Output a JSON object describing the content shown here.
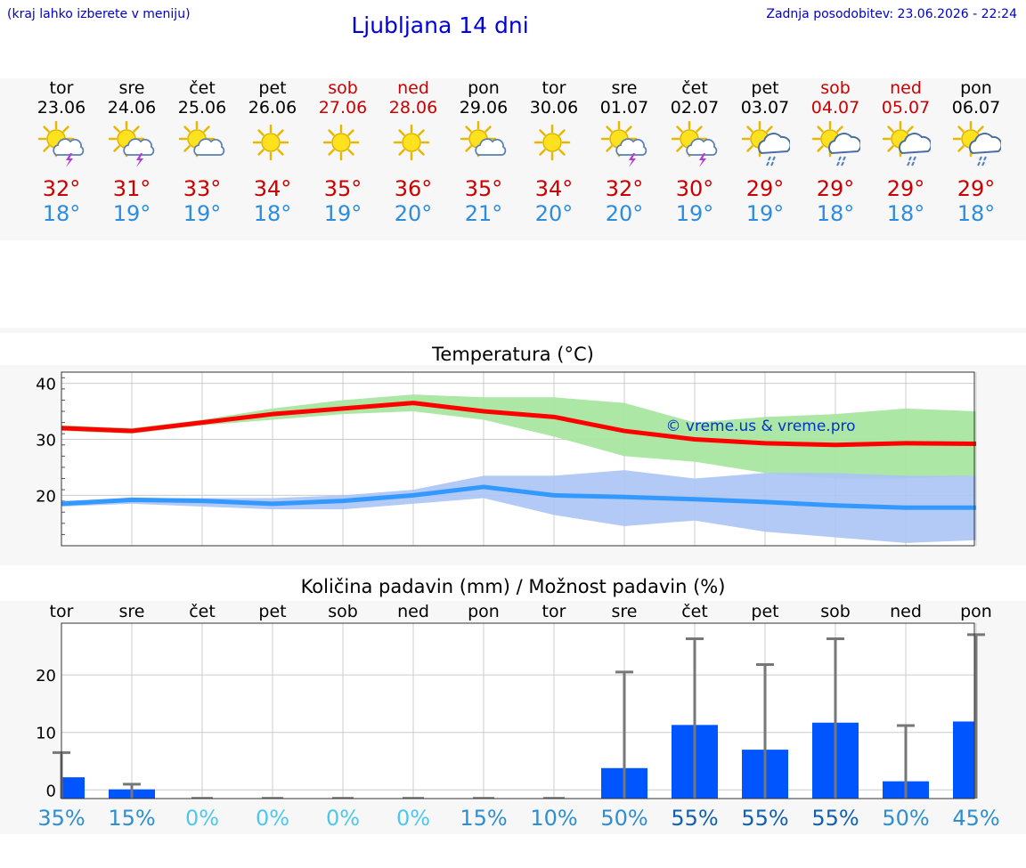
{
  "header": {
    "hint": "(kraj lahko izberete v meniju)",
    "title": "Ljubljana 14 dni",
    "updated": "Zadnja posodobitev: 23.06.2026 - 22:24"
  },
  "days": [
    {
      "name": "tor",
      "date": "23.06",
      "icon": "sun-thunder-icon",
      "max": "32°",
      "min": "18°",
      "weekend": false
    },
    {
      "name": "sre",
      "date": "24.06",
      "icon": "sun-thunder-icon",
      "max": "31°",
      "min": "19°",
      "weekend": false
    },
    {
      "name": "čet",
      "date": "25.06",
      "icon": "sun-cloud-icon",
      "max": "33°",
      "min": "19°",
      "weekend": false
    },
    {
      "name": "pet",
      "date": "26.06",
      "icon": "sun-icon",
      "max": "34°",
      "min": "18°",
      "weekend": false
    },
    {
      "name": "sob",
      "date": "27.06",
      "icon": "sun-icon",
      "max": "35°",
      "min": "19°",
      "weekend": true
    },
    {
      "name": "ned",
      "date": "28.06",
      "icon": "sun-icon",
      "max": "36°",
      "min": "20°",
      "weekend": true
    },
    {
      "name": "pon",
      "date": "29.06",
      "icon": "sun-cloud-icon",
      "max": "35°",
      "min": "21°",
      "weekend": false
    },
    {
      "name": "tor",
      "date": "30.06",
      "icon": "sun-icon",
      "max": "34°",
      "min": "20°",
      "weekend": false
    },
    {
      "name": "sre",
      "date": "01.07",
      "icon": "sun-thunder-icon",
      "max": "32°",
      "min": "20°",
      "weekend": false
    },
    {
      "name": "čet",
      "date": "02.07",
      "icon": "sun-thunder-icon",
      "max": "30°",
      "min": "19°",
      "weekend": false
    },
    {
      "name": "pet",
      "date": "03.07",
      "icon": "sun-rain-icon",
      "max": "29°",
      "min": "19°",
      "weekend": false
    },
    {
      "name": "sob",
      "date": "04.07",
      "icon": "sun-rain-icon",
      "max": "29°",
      "min": "18°",
      "weekend": true
    },
    {
      "name": "ned",
      "date": "05.07",
      "icon": "sun-rain-icon",
      "max": "29°",
      "min": "18°",
      "weekend": true
    },
    {
      "name": "pon",
      "date": "06.07",
      "icon": "sun-rain-icon",
      "max": "29°",
      "min": "18°",
      "weekend": false
    }
  ],
  "colors": {
    "max": "#ff0000",
    "min": "#3399ff",
    "maxBand": "#a8e6a0",
    "minBand": "#aac4f4",
    "bar": "#0055ff",
    "errbar": "#777777"
  },
  "chart_data": [
    {
      "type": "line",
      "title": "Temperatura (°C)",
      "x": [
        "tor",
        "sre",
        "čet",
        "pet",
        "sob",
        "ned",
        "pon",
        "tor",
        "sre",
        "čet",
        "pet",
        "sob",
        "ned",
        "pon"
      ],
      "ylim": [
        11,
        42
      ],
      "yticks": [
        20,
        30,
        40
      ],
      "watermark": "© vreme.us & vreme.pro",
      "series": [
        {
          "name": "max",
          "values": [
            32,
            31.5,
            33,
            34.5,
            35.5,
            36.5,
            35,
            34,
            31.5,
            30,
            29.3,
            29,
            29.3,
            29.2
          ],
          "band_low": [
            31.5,
            31,
            32.5,
            33.5,
            34.5,
            35,
            33.5,
            30.5,
            27,
            26,
            24,
            23,
            23,
            23.5
          ],
          "band_high": [
            32.5,
            32,
            33.5,
            35.5,
            37,
            38,
            37.5,
            37.5,
            36.5,
            33,
            34,
            34.5,
            35.5,
            35
          ]
        },
        {
          "name": "min",
          "values": [
            18.5,
            19.2,
            19,
            18.5,
            19,
            20,
            21.5,
            20,
            19.7,
            19.3,
            18.8,
            18.2,
            17.8,
            17.8
          ],
          "band_low": [
            18,
            18.5,
            18,
            17.5,
            17.5,
            18.5,
            19.5,
            16.5,
            14.5,
            15.5,
            13.5,
            12.5,
            11.5,
            12
          ],
          "band_high": [
            19,
            19.5,
            19.5,
            19.5,
            20,
            21,
            23.5,
            23.5,
            24.5,
            23,
            24,
            24,
            23.5,
            23.5
          ]
        }
      ]
    },
    {
      "type": "bar",
      "title": "Količina padavin (mm) / Možnost padavin (%)",
      "categories": [
        "tor",
        "sre",
        "čet",
        "pet",
        "sob",
        "ned",
        "pon",
        "tor",
        "sre",
        "čet",
        "pet",
        "sob",
        "ned",
        "pon"
      ],
      "ylim": [
        -1.5,
        29
      ],
      "yticks": [
        0,
        10,
        20
      ],
      "values": [
        2.2,
        0.1,
        0,
        0,
        0,
        0,
        0,
        0,
        3.8,
        11.3,
        7.0,
        11.7,
        1.5,
        11.9
      ],
      "error_high": [
        6.5,
        1.0,
        0,
        0,
        0,
        0,
        0,
        0,
        20.5,
        26.3,
        21.8,
        26.3,
        11.2,
        27.0
      ],
      "probabilities": [
        "35%",
        "15%",
        "0%",
        "0%",
        "0%",
        "0%",
        "15%",
        "10%",
        "50%",
        "55%",
        "55%",
        "55%",
        "50%",
        "45%"
      ]
    }
  ]
}
